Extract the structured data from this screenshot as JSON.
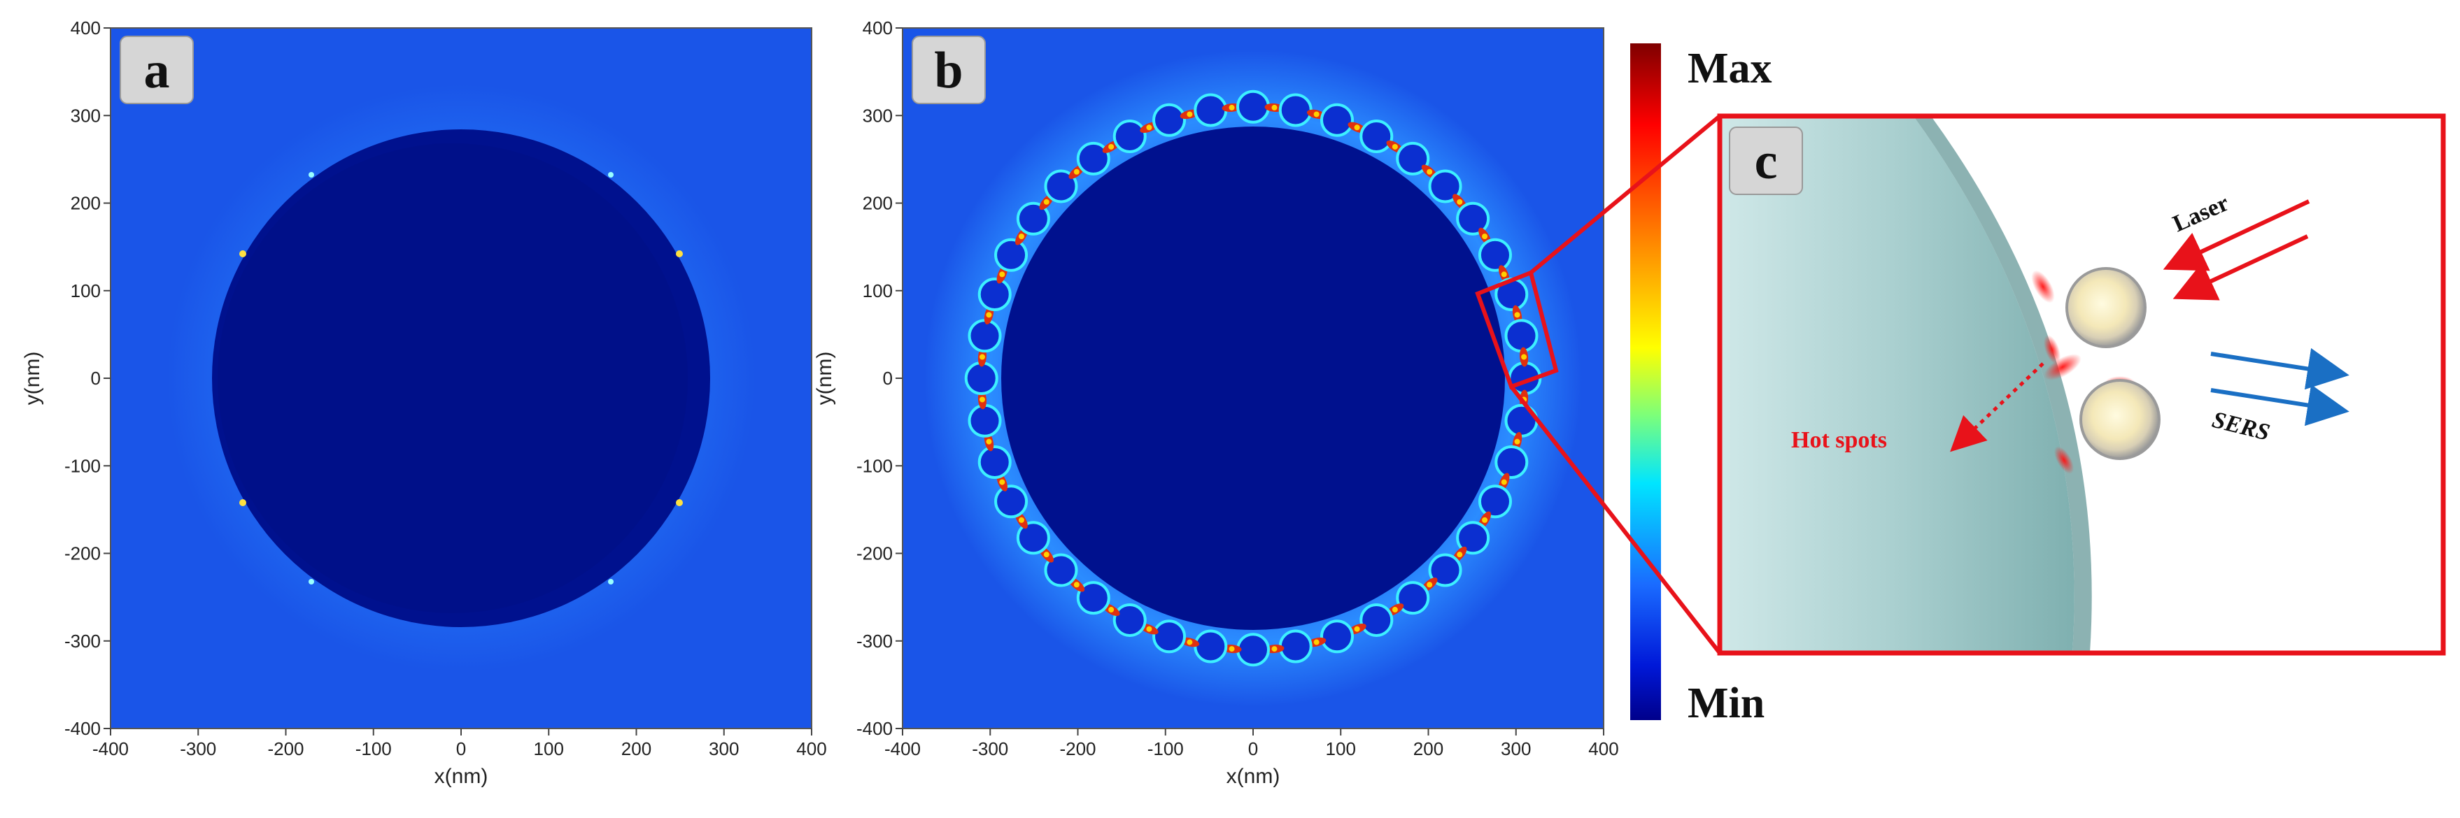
{
  "panels": {
    "a": {
      "label": "a"
    },
    "b": {
      "label": "b"
    },
    "c": {
      "label": "c"
    }
  },
  "axes": {
    "xlabel": "x(nm)",
    "ylabel": "y(nm)",
    "ticks": [
      "-400",
      "-300",
      "-200",
      "-100",
      "0",
      "100",
      "200",
      "300",
      "400"
    ]
  },
  "colorbar": {
    "max_label": "Max",
    "min_label": "Min"
  },
  "schematic": {
    "laser_label": "Laser",
    "sers_label": "SERS",
    "hotspots_label": "Hot spots"
  },
  "field_model": {
    "core_radius_nm": 280,
    "particle_count": 40,
    "particle_ring_radius_nm": 310
  },
  "colors": {
    "field_bg": "#1a55e8",
    "core": "#00108c",
    "laser": "#e8121a",
    "sers": "#1a6fc4",
    "hotspot": "#e8121a",
    "frame": "#e8121a"
  }
}
